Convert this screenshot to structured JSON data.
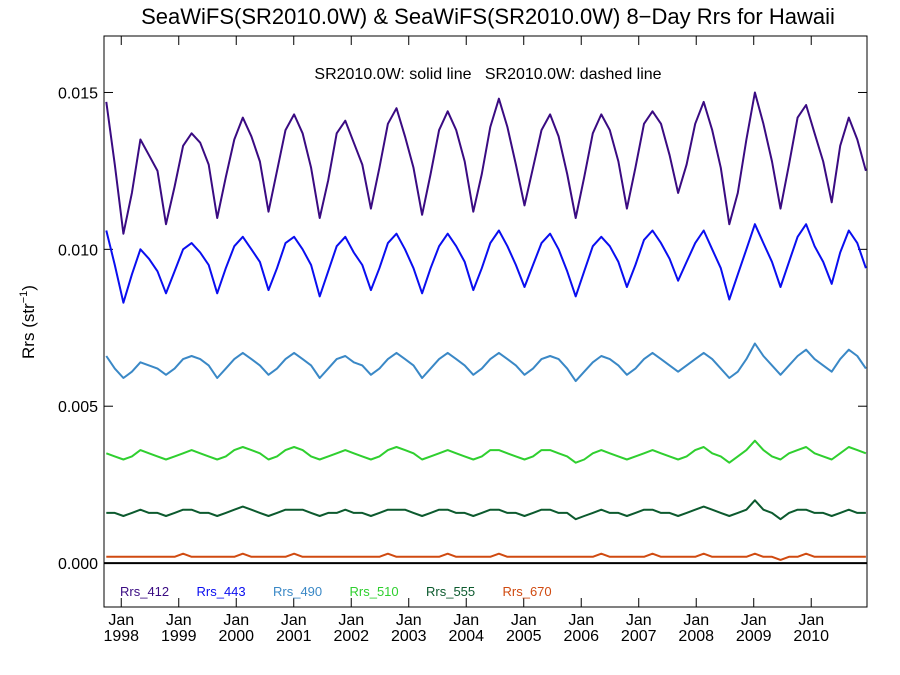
{
  "chart_data": {
    "type": "line",
    "title": "SeaWiFS(SR2010.0W) & SeaWiFS(SR2010.0W) 8−Day Rrs for Hawaii",
    "annotation": "SR2010.0W: solid line   SR2010.0W: dashed line",
    "ylabel": {
      "base": "Rrs (str",
      "sup": "−1",
      "close": ")"
    },
    "xlim": [
      1997.7,
      2010.97
    ],
    "ylim": [
      -0.0014,
      0.0168
    ],
    "y_ticks": [
      0.0,
      0.005,
      0.01,
      0.015
    ],
    "y_tick_labels": [
      "0.000",
      "0.005",
      "0.010",
      "0.015"
    ],
    "x_ticks": [
      1998,
      1999,
      2000,
      2001,
      2002,
      2003,
      2004,
      2005,
      2006,
      2007,
      2008,
      2009,
      2010
    ],
    "x_tick_labels_top": [
      "Jan",
      "Jan",
      "Jan",
      "Jan",
      "Jan",
      "Jan",
      "Jan",
      "Jan",
      "Jan",
      "Jan",
      "Jan",
      "Jan",
      "Jan"
    ],
    "x_tick_labels_bottom": [
      "1998",
      "1999",
      "2000",
      "2001",
      "2002",
      "2003",
      "2004",
      "2005",
      "2006",
      "2007",
      "2008",
      "2009",
      "2010"
    ],
    "zero_line": 0.0,
    "legend_position": "bottom-left",
    "grid": false,
    "series": [
      {
        "name": "Rrs_412",
        "color": "#3a0b82",
        "values": [
          0.0147,
          0.0127,
          0.0105,
          0.0118,
          0.0135,
          0.013,
          0.0125,
          0.0108,
          0.012,
          0.0133,
          0.0137,
          0.0134,
          0.0127,
          0.011,
          0.0123,
          0.0135,
          0.0142,
          0.0136,
          0.0128,
          0.0112,
          0.0125,
          0.0138,
          0.0143,
          0.0137,
          0.0126,
          0.011,
          0.0122,
          0.0137,
          0.0141,
          0.0134,
          0.0127,
          0.0113,
          0.0126,
          0.014,
          0.0145,
          0.0136,
          0.0126,
          0.0111,
          0.0124,
          0.0138,
          0.0144,
          0.0138,
          0.0128,
          0.0112,
          0.0124,
          0.0139,
          0.0148,
          0.0139,
          0.0127,
          0.0114,
          0.0126,
          0.0138,
          0.0143,
          0.0136,
          0.0124,
          0.011,
          0.0123,
          0.0137,
          0.0143,
          0.0138,
          0.0128,
          0.0113,
          0.0126,
          0.014,
          0.0144,
          0.014,
          0.013,
          0.0118,
          0.0127,
          0.014,
          0.0147,
          0.0138,
          0.0126,
          0.0108,
          0.0118,
          0.0135,
          0.015,
          0.014,
          0.0128,
          0.0113,
          0.0127,
          0.0142,
          0.0146,
          0.0137,
          0.0128,
          0.0115,
          0.0133,
          0.0142,
          0.0135,
          0.0125
        ]
      },
      {
        "name": "Rrs_443",
        "color": "#0a0ef0",
        "values": [
          0.0106,
          0.0095,
          0.0083,
          0.0092,
          0.01,
          0.0097,
          0.0093,
          0.0086,
          0.0093,
          0.01,
          0.0102,
          0.0099,
          0.0095,
          0.0086,
          0.0094,
          0.0101,
          0.0104,
          0.01,
          0.0096,
          0.0087,
          0.0094,
          0.0102,
          0.0104,
          0.01,
          0.0095,
          0.0085,
          0.0093,
          0.0101,
          0.0104,
          0.0099,
          0.0095,
          0.0087,
          0.0094,
          0.0102,
          0.0105,
          0.01,
          0.0094,
          0.0086,
          0.0094,
          0.0101,
          0.0105,
          0.0101,
          0.0096,
          0.0087,
          0.0094,
          0.0102,
          0.0106,
          0.0101,
          0.0095,
          0.0088,
          0.0095,
          0.0102,
          0.0105,
          0.01,
          0.0093,
          0.0085,
          0.0093,
          0.0101,
          0.0104,
          0.0101,
          0.0096,
          0.0088,
          0.0095,
          0.0103,
          0.0106,
          0.0102,
          0.0097,
          0.009,
          0.0096,
          0.0102,
          0.0106,
          0.01,
          0.0094,
          0.0084,
          0.0092,
          0.01,
          0.0108,
          0.0102,
          0.0096,
          0.0088,
          0.0096,
          0.0104,
          0.0108,
          0.0101,
          0.0096,
          0.0089,
          0.0099,
          0.0106,
          0.0102,
          0.0094
        ]
      },
      {
        "name": "Rrs_490",
        "color": "#3a88c6",
        "values": [
          0.0066,
          0.0062,
          0.0059,
          0.0061,
          0.0064,
          0.0063,
          0.0062,
          0.006,
          0.0062,
          0.0065,
          0.0066,
          0.0065,
          0.0063,
          0.0059,
          0.0062,
          0.0065,
          0.0067,
          0.0065,
          0.0063,
          0.006,
          0.0062,
          0.0065,
          0.0067,
          0.0065,
          0.0063,
          0.0059,
          0.0062,
          0.0065,
          0.0066,
          0.0064,
          0.0063,
          0.006,
          0.0062,
          0.0065,
          0.0067,
          0.0065,
          0.0063,
          0.0059,
          0.0062,
          0.0065,
          0.0067,
          0.0065,
          0.0063,
          0.006,
          0.0062,
          0.0065,
          0.0067,
          0.0065,
          0.0063,
          0.006,
          0.0062,
          0.0065,
          0.0066,
          0.0065,
          0.0062,
          0.0058,
          0.0061,
          0.0064,
          0.0066,
          0.0065,
          0.0063,
          0.006,
          0.0062,
          0.0065,
          0.0067,
          0.0065,
          0.0063,
          0.0061,
          0.0063,
          0.0065,
          0.0067,
          0.0065,
          0.0062,
          0.0059,
          0.0061,
          0.0065,
          0.007,
          0.0066,
          0.0063,
          0.006,
          0.0063,
          0.0066,
          0.0068,
          0.0065,
          0.0063,
          0.0061,
          0.0065,
          0.0068,
          0.0066,
          0.0062
        ]
      },
      {
        "name": "Rrs_510",
        "color": "#2fcf2f",
        "values": [
          0.0035,
          0.0034,
          0.0033,
          0.0034,
          0.0036,
          0.0035,
          0.0034,
          0.0033,
          0.0034,
          0.0035,
          0.0036,
          0.0035,
          0.0034,
          0.0033,
          0.0034,
          0.0036,
          0.0037,
          0.0036,
          0.0035,
          0.0033,
          0.0034,
          0.0036,
          0.0037,
          0.0036,
          0.0034,
          0.0033,
          0.0034,
          0.0035,
          0.0036,
          0.0035,
          0.0034,
          0.0033,
          0.0034,
          0.0036,
          0.0037,
          0.0036,
          0.0035,
          0.0033,
          0.0034,
          0.0035,
          0.0036,
          0.0035,
          0.0034,
          0.0033,
          0.0034,
          0.0036,
          0.0036,
          0.0035,
          0.0034,
          0.0033,
          0.0034,
          0.0036,
          0.0036,
          0.0035,
          0.0034,
          0.0032,
          0.0033,
          0.0035,
          0.0036,
          0.0035,
          0.0034,
          0.0033,
          0.0034,
          0.0035,
          0.0036,
          0.0035,
          0.0034,
          0.0033,
          0.0034,
          0.0036,
          0.0037,
          0.0035,
          0.0034,
          0.0032,
          0.0034,
          0.0036,
          0.0039,
          0.0036,
          0.0034,
          0.0033,
          0.0035,
          0.0036,
          0.0037,
          0.0035,
          0.0034,
          0.0033,
          0.0035,
          0.0037,
          0.0036,
          0.0035
        ]
      },
      {
        "name": "Rrs_555",
        "color": "#0c5a2e",
        "values": [
          0.0016,
          0.0016,
          0.0015,
          0.0016,
          0.0017,
          0.0016,
          0.0016,
          0.0015,
          0.0016,
          0.0017,
          0.0017,
          0.0016,
          0.0016,
          0.0015,
          0.0016,
          0.0017,
          0.0018,
          0.0017,
          0.0016,
          0.0015,
          0.0016,
          0.0017,
          0.0017,
          0.0017,
          0.0016,
          0.0015,
          0.0016,
          0.0016,
          0.0017,
          0.0016,
          0.0016,
          0.0015,
          0.0016,
          0.0017,
          0.0017,
          0.0017,
          0.0016,
          0.0015,
          0.0016,
          0.0017,
          0.0017,
          0.0016,
          0.0016,
          0.0015,
          0.0016,
          0.0017,
          0.0017,
          0.0016,
          0.0016,
          0.0015,
          0.0016,
          0.0017,
          0.0017,
          0.0016,
          0.0016,
          0.0014,
          0.0015,
          0.0016,
          0.0017,
          0.0016,
          0.0016,
          0.0015,
          0.0016,
          0.0017,
          0.0017,
          0.0016,
          0.0016,
          0.0015,
          0.0016,
          0.0017,
          0.0018,
          0.0017,
          0.0016,
          0.0015,
          0.0016,
          0.0017,
          0.002,
          0.0017,
          0.0016,
          0.0014,
          0.0016,
          0.0017,
          0.0017,
          0.0016,
          0.0016,
          0.0015,
          0.0016,
          0.0017,
          0.0016,
          0.0016
        ]
      },
      {
        "name": "Rrs_670",
        "color": "#d04a10",
        "values": [
          0.0002,
          0.0002,
          0.0002,
          0.0002,
          0.0002,
          0.0002,
          0.0002,
          0.0002,
          0.0002,
          0.0003,
          0.0002,
          0.0002,
          0.0002,
          0.0002,
          0.0002,
          0.0002,
          0.0003,
          0.0002,
          0.0002,
          0.0002,
          0.0002,
          0.0002,
          0.0003,
          0.0002,
          0.0002,
          0.0002,
          0.0002,
          0.0002,
          0.0002,
          0.0002,
          0.0002,
          0.0002,
          0.0002,
          0.0003,
          0.0002,
          0.0002,
          0.0002,
          0.0002,
          0.0002,
          0.0002,
          0.0003,
          0.0002,
          0.0002,
          0.0002,
          0.0002,
          0.0002,
          0.0003,
          0.0002,
          0.0002,
          0.0002,
          0.0002,
          0.0002,
          0.0002,
          0.0002,
          0.0002,
          0.0002,
          0.0002,
          0.0002,
          0.0003,
          0.0002,
          0.0002,
          0.0002,
          0.0002,
          0.0002,
          0.0003,
          0.0002,
          0.0002,
          0.0002,
          0.0002,
          0.0002,
          0.0003,
          0.0002,
          0.0002,
          0.0002,
          0.0002,
          0.0002,
          0.0003,
          0.0002,
          0.0002,
          0.0001,
          0.0002,
          0.0002,
          0.0003,
          0.0002,
          0.0002,
          0.0002,
          0.0002,
          0.0002,
          0.0002,
          0.0002
        ]
      }
    ]
  }
}
